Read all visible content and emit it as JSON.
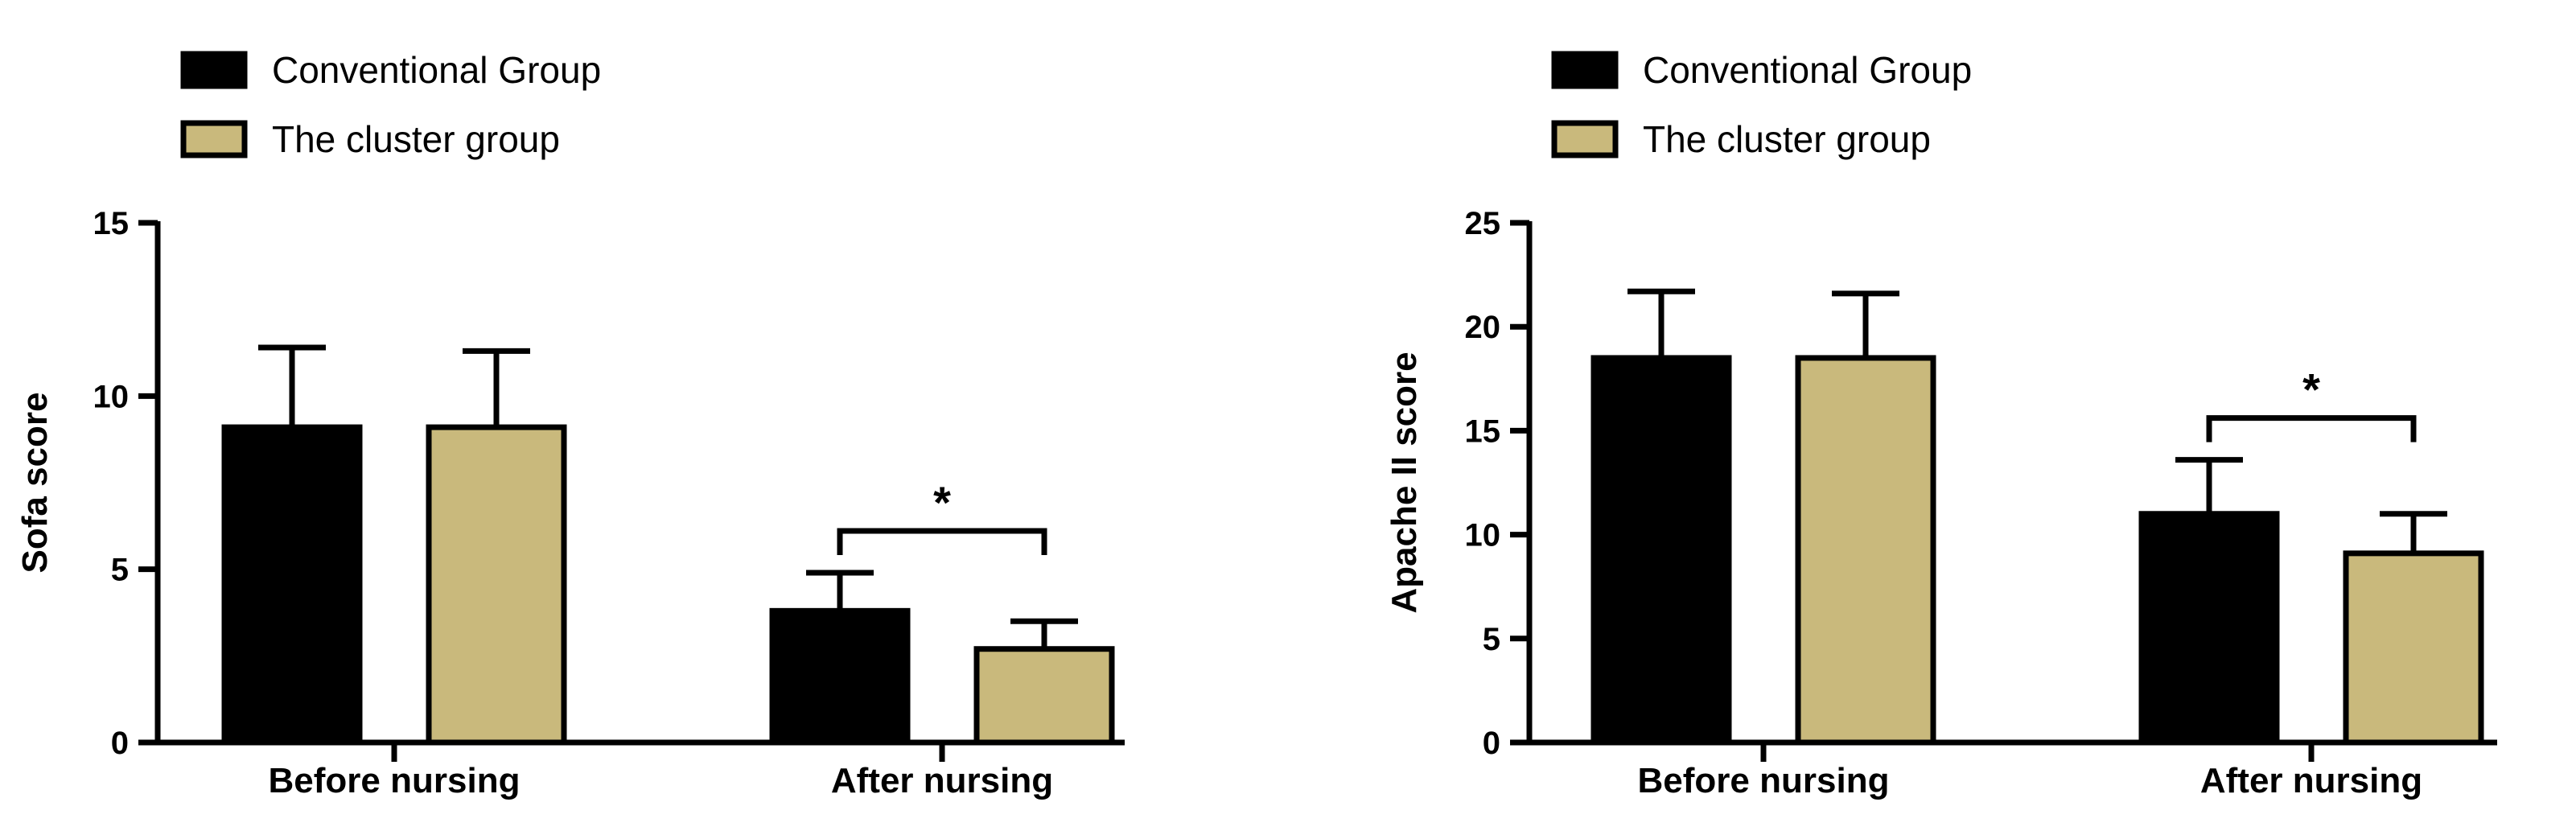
{
  "colors": {
    "conventional": "#000000",
    "cluster": "#c9b97c",
    "axis": "#000000"
  },
  "chart_data": [
    {
      "type": "bar",
      "categories": [
        "Before nursing",
        "After nursing"
      ],
      "series": [
        {
          "name": "Conventional Group",
          "values": [
            9.1,
            3.8
          ],
          "errors": [
            2.3,
            1.1
          ]
        },
        {
          "name": "The cluster group",
          "values": [
            9.1,
            2.7
          ],
          "errors": [
            2.2,
            0.8
          ]
        }
      ],
      "ylabel": "Sofa score",
      "ylim": [
        0,
        15
      ],
      "yticks": [
        "0",
        "5",
        "10",
        "15"
      ],
      "significance": {
        "category": "After nursing",
        "label": "*"
      },
      "legend_position": "top-left",
      "grid": false
    },
    {
      "type": "bar",
      "categories": [
        "Before nursing",
        "After nursing"
      ],
      "series": [
        {
          "name": "Conventional Group",
          "values": [
            18.5,
            11.0
          ],
          "errors": [
            3.2,
            2.6
          ]
        },
        {
          "name": "The cluster group",
          "values": [
            18.5,
            9.1
          ],
          "errors": [
            3.1,
            1.9
          ]
        }
      ],
      "ylabel": "Apache II score",
      "ylim": [
        0,
        25
      ],
      "yticks": [
        "0",
        "5",
        "10",
        "15",
        "20",
        "25"
      ],
      "significance": {
        "category": "After nursing",
        "label": "*"
      },
      "legend_position": "top-left",
      "grid": false
    }
  ]
}
